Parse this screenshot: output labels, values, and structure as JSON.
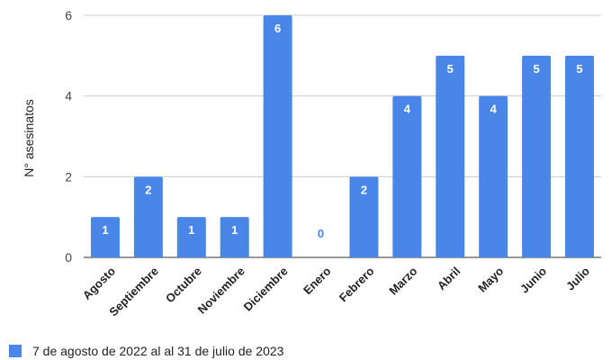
{
  "chart_data": {
    "type": "bar",
    "categories": [
      "Agosto",
      "Septiembre",
      "Octubre",
      "Noviembre",
      "Diciembre",
      "Enero",
      "Febrero",
      "Marzo",
      "Abril",
      "Mayo",
      "Junio",
      "Julio"
    ],
    "series": [
      {
        "name": "7 de agosto de 2022 al al 31 de julio de 2023",
        "values": [
          1,
          2,
          1,
          1,
          6,
          0,
          2,
          4,
          5,
          4,
          5,
          5
        ],
        "color": "#4a86e8"
      }
    ],
    "title": "",
    "xlabel": "",
    "ylabel": "N° asesinatos",
    "ylim": [
      0,
      6
    ],
    "yticks": [
      0,
      2,
      4,
      6
    ],
    "grid": true,
    "data_labels": true,
    "legend_position": "bottom-left"
  }
}
